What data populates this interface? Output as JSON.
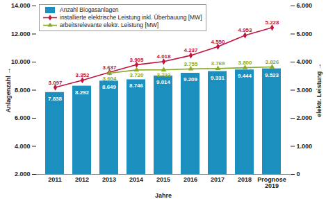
{
  "chart_data": {
    "type": "bar",
    "categories": [
      "2011",
      "2012",
      "2013",
      "2014",
      "2015",
      "2016",
      "2017",
      "2018",
      "Prognose 2019"
    ],
    "x_label": "Jahre",
    "y_label": "Anlagenzahl",
    "y2_label": "elektr. Leistung",
    "ylim": [
      2000,
      14000
    ],
    "yticks": [
      {
        "value": 2000,
        "label": "2.000"
      },
      {
        "value": 4000,
        "label": "4.000"
      },
      {
        "value": 6000,
        "label": "6.000"
      },
      {
        "value": 8000,
        "label": "8.000"
      },
      {
        "value": 10000,
        "label": "10.000"
      },
      {
        "value": 12000,
        "label": "12.000"
      },
      {
        "value": 14000,
        "label": "14.000"
      }
    ],
    "y2lim": [
      0,
      6000
    ],
    "y2ticks": [
      0,
      {
        "value": 1000,
        "label": "1.000"
      },
      {
        "value": 2000,
        "label": "2.000"
      },
      {
        "value": 3000,
        "label": "3.000"
      },
      {
        "value": 4000,
        "label": "4.000"
      },
      {
        "value": 5000,
        "label": "5.000"
      },
      {
        "value": 6000,
        "label": "6.000"
      }
    ],
    "grid": false,
    "legend": "top-left",
    "data_labels": true,
    "series": [
      {
        "name": "Anzahl Biogasanlagen",
        "type": "bar",
        "color": "#1b8fbe",
        "values": [
          7838,
          8292,
          8649,
          8746,
          9014,
          9209,
          9331,
          9444,
          9523
        ],
        "value_labels": [
          "7.838",
          "8.292",
          "8.649",
          "8.746",
          "9.014",
          "9.209",
          "9.331",
          "9.444",
          "9.523"
        ]
      },
      {
        "name": "installierte elektrische Leistung inkl. Überbauung [MW]",
        "type": "line",
        "axis": "y2",
        "color": "#c0143c",
        "marker": "diamond",
        "values": [
          3097,
          3352,
          3637,
          3905,
          4018,
          4237,
          4550,
          4953,
          5228
        ],
        "value_labels": [
          "3.097",
          "3.352",
          "3.637",
          "3.905",
          "4.018",
          "4.237",
          "4.550",
          "4.953",
          "5.228"
        ]
      },
      {
        "name": "arbeitsrelevante elektr. Leistung [MW]",
        "type": "line",
        "axis": "y2",
        "color": "#8aab2a",
        "marker": "triangle",
        "values": [
          null,
          null,
          3604,
          3720,
          3723,
          3755,
          3769,
          3800,
          3826
        ],
        "value_labels": [
          null,
          null,
          "3.604",
          "3.720",
          "3.723",
          "3.755",
          "3.769",
          "3.800",
          "3.826"
        ]
      }
    ]
  }
}
